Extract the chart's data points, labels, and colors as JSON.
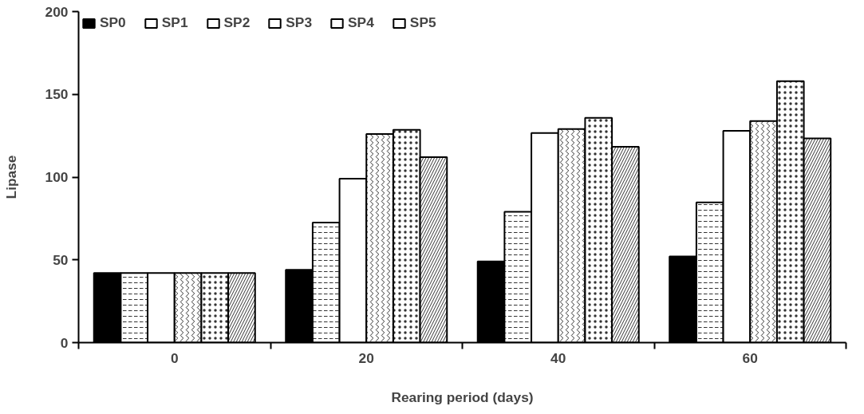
{
  "chart_data": {
    "type": "bar",
    "xlabel": "Rearing period (days)",
    "ylabel": "Lipase",
    "categories": [
      "0",
      "20",
      "40",
      "60"
    ],
    "series": [
      {
        "name": "SP0",
        "color": "#000000",
        "values": [
          42,
          44,
          49,
          52
        ]
      },
      {
        "name": "SP1",
        "color": "#ffffff",
        "values": [
          42,
          72.5,
          79,
          84.7
        ]
      },
      {
        "name": "SP2",
        "color": "#ffffff",
        "values": [
          42,
          99,
          126.6,
          128
        ]
      },
      {
        "name": "SP3",
        "color": "#ffffff",
        "values": [
          42,
          126,
          129,
          133.8
        ]
      },
      {
        "name": "SP4",
        "color": "#ffffff",
        "values": [
          42,
          128.5,
          135.8,
          157.9
        ]
      },
      {
        "name": "SP5",
        "color": "#ffffff",
        "values": [
          42,
          112,
          118.3,
          123.4
        ]
      }
    ],
    "ylim": [
      0,
      200
    ],
    "yticks": [
      0,
      50,
      100,
      150,
      200
    ],
    "grid": false,
    "legend": "top left"
  }
}
